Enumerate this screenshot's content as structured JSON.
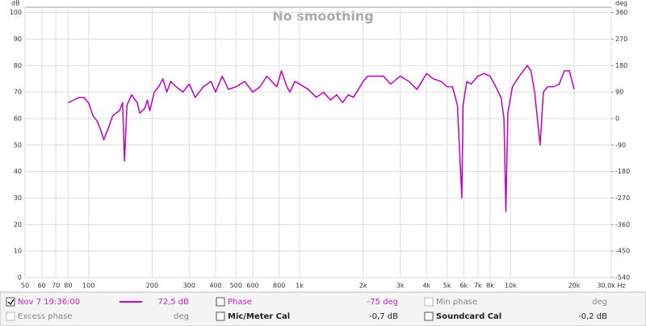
{
  "chart_data": {
    "type": "line",
    "title": "No smoothing",
    "y_label": "dB",
    "y2_label": "deg",
    "log_x": true,
    "grid": true,
    "xlim": [
      50,
      30000
    ],
    "ylim": [
      0,
      102
    ],
    "y2lim": [
      -540,
      378
    ],
    "xticks": [
      50,
      60,
      70,
      80,
      100,
      200,
      300,
      400,
      500,
      600,
      800,
      {
        "value": 1000,
        "label": "1k"
      },
      {
        "value": 2000,
        "label": "2k"
      },
      {
        "value": 3000,
        "label": "3k"
      },
      {
        "value": 4000,
        "label": "4k"
      },
      {
        "value": 5000,
        "label": "5k"
      },
      {
        "value": 6000,
        "label": "6k"
      },
      {
        "value": 7000,
        "label": "7k"
      },
      {
        "value": 8000,
        "label": "8k"
      },
      {
        "value": 10000,
        "label": "10k"
      },
      {
        "value": 20000,
        "label": "20k"
      },
      {
        "value": 30000,
        "label": "30,0k Hz"
      }
    ],
    "yticks": [
      0,
      10,
      20,
      30,
      40,
      50,
      60,
      70,
      80,
      90,
      100
    ],
    "y2ticks": [
      -540,
      -450,
      -360,
      -270,
      -180,
      -90,
      0,
      90,
      180,
      270,
      360
    ],
    "x": [
      80,
      85,
      90,
      95,
      100,
      105,
      110,
      115,
      118,
      125,
      130,
      140,
      145,
      148,
      152,
      160,
      170,
      175,
      185,
      190,
      195,
      205,
      215,
      225,
      235,
      245,
      260,
      280,
      300,
      320,
      350,
      380,
      400,
      430,
      460,
      500,
      550,
      600,
      650,
      700,
      780,
      820,
      870,
      900,
      950,
      1000,
      1100,
      1200,
      1300,
      1400,
      1500,
      1600,
      1700,
      1800,
      1900,
      2000,
      2100,
      2300,
      2500,
      2700,
      3000,
      3300,
      3600,
      4000,
      4300,
      4700,
      5000,
      5300,
      5600,
      5870,
      5950,
      6200,
      6500,
      7000,
      7500,
      8000,
      8500,
      9000,
      9300,
      9500,
      9700,
      10200,
      11000,
      12000,
      12500,
      13000,
      13800,
      14300,
      15000,
      16000,
      17000,
      18000,
      19000,
      20000
    ],
    "series": [
      {
        "name": "Nov 7 19:36:00",
        "color": "#c000c0",
        "values": [
          66,
          67,
          68,
          68,
          66,
          61,
          59,
          55,
          52,
          57,
          61,
          63,
          66,
          44,
          65,
          69,
          66,
          62,
          64,
          67,
          63,
          70,
          72,
          75,
          70,
          74,
          72,
          70,
          73,
          68,
          72,
          74,
          70,
          76,
          71,
          72,
          74,
          70,
          72,
          76,
          72,
          78,
          72,
          70,
          74,
          73,
          71,
          68,
          70,
          67,
          69,
          66,
          69,
          68,
          71,
          74,
          76,
          76,
          76,
          73,
          76,
          74,
          71,
          77,
          75,
          74,
          72,
          72,
          65,
          30,
          65,
          74,
          73,
          76,
          77,
          76,
          72,
          68,
          60,
          25,
          62,
          72,
          76,
          80,
          78,
          70,
          50,
          70,
          72,
          72,
          73,
          78,
          78,
          71
        ]
      }
    ]
  },
  "panel": {
    "value": "72,5 dB",
    "phase": "Phase",
    "phase_value": "-75 deg",
    "min_phase": "Min phase",
    "min_phase_unit": "deg",
    "excess_phase": "Excess phase",
    "excess_phase_unit": "deg",
    "mic_cal": "Mic/Meter Cal",
    "mic_cal_value": "-0,7 dB",
    "soundcard_cal": "Soundcard Cal",
    "soundcard_cal_value": "-0,2 dB"
  }
}
